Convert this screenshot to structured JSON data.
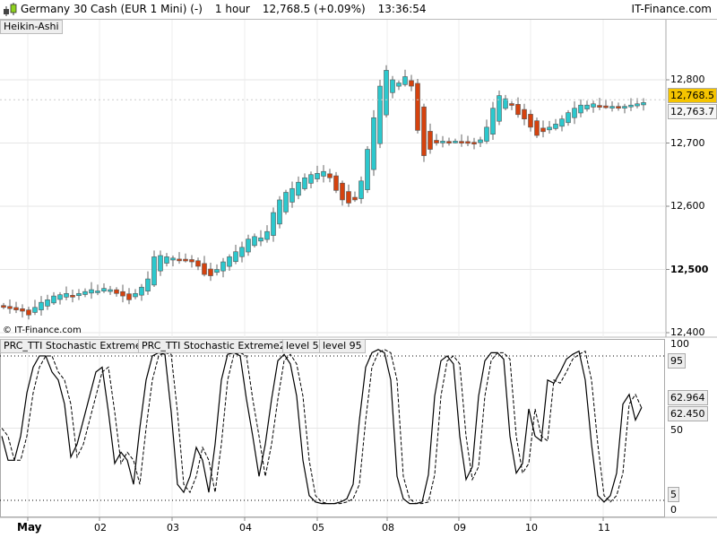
{
  "header": {
    "instrument": "Germany 30 Cash (EUR 1 Mini) (-)",
    "timeframe": "1 hour",
    "price": "12,768.5 (+0.09%)",
    "time": "13:36:54",
    "brand": "IT-Finance.com"
  },
  "main_panel": {
    "chart_style": "Heikin-Ashi",
    "copyright": "© IT-Finance.com",
    "price_ticks": [
      "12,800",
      "12,700",
      "12,600",
      "12,500",
      "12,400"
    ],
    "price_tick_values": [
      12800,
      12700,
      12600,
      12500,
      12400
    ],
    "last_price": "12,768.5",
    "second_price": "12,763.7",
    "colors": {
      "up": "#2cc8cd",
      "down": "#d5420e",
      "wick": "#666666",
      "last_price_bg": "#f5c400"
    },
    "closes": [
      12440,
      12438,
      12436,
      12434,
      12428,
      12440,
      12448,
      12452,
      12458,
      12460,
      12462,
      12458,
      12462,
      12465,
      12468,
      12466,
      12470,
      12468,
      12462,
      12458,
      12452,
      12462,
      12472,
      12485,
      12520,
      12522,
      12520,
      12518,
      12516,
      12515,
      12512,
      12505,
      12492,
      12490,
      12500,
      12512,
      12520,
      12528,
      12535,
      12548,
      12552,
      12550,
      12560,
      12590,
      12610,
      12622,
      12628,
      12638,
      12645,
      12650,
      12652,
      12655,
      12645,
      12625,
      12610,
      12605,
      12610,
      12640,
      12690,
      12740,
      12790,
      12815,
      12800,
      12795,
      12805,
      12790,
      12720,
      12680,
      12690,
      12700,
      12703,
      12702,
      12703,
      12702,
      12700,
      12700,
      12705,
      12725,
      12755,
      12775,
      12770,
      12760,
      12745,
      12738,
      12725,
      12712,
      12718,
      12725,
      12730,
      12738,
      12748,
      12755,
      12760,
      12760,
      12762,
      12758,
      12757,
      12758,
      12756,
      12758,
      12760,
      12762,
      12764
    ]
  },
  "indicator_panel": {
    "tabs": [
      "PRC_TTI Stochastic Extreme",
      "PRC_TTI Stochastic Extreme2",
      "level 5",
      "level 95"
    ],
    "ticks": [
      "100",
      "50",
      "0"
    ],
    "level_95": "95",
    "level_5": "5",
    "value_1": "62.964",
    "value_2": "62.450",
    "series_solid": [
      45,
      30,
      30,
      45,
      72,
      88,
      95,
      95,
      85,
      80,
      65,
      32,
      40,
      55,
      70,
      85,
      88,
      60,
      28,
      35,
      30,
      15,
      50,
      80,
      95,
      97,
      96,
      60,
      15,
      10,
      20,
      38,
      30,
      10,
      40,
      80,
      96,
      97,
      95,
      68,
      45,
      20,
      40,
      68,
      92,
      96,
      90,
      70,
      30,
      8,
      4,
      3,
      3,
      3,
      4,
      6,
      15,
      55,
      88,
      97,
      99,
      97,
      80,
      20,
      6,
      3,
      3,
      4,
      21,
      70,
      92,
      95,
      90,
      45,
      18,
      26,
      70,
      92,
      97,
      97,
      93,
      45,
      22,
      28,
      62,
      45,
      42,
      80,
      78,
      85,
      93,
      96,
      98,
      80,
      40,
      8,
      4,
      8,
      22,
      65,
      71,
      55,
      62.964
    ],
    "series_dashed": [
      50,
      45,
      30,
      30,
      45,
      72,
      88,
      95,
      95,
      85,
      80,
      65,
      32,
      40,
      55,
      70,
      85,
      88,
      60,
      28,
      35,
      30,
      15,
      50,
      80,
      95,
      97,
      96,
      60,
      15,
      10,
      20,
      38,
      30,
      10,
      40,
      80,
      96,
      97,
      95,
      68,
      45,
      20,
      40,
      68,
      92,
      96,
      90,
      70,
      30,
      8,
      4,
      3,
      3,
      3,
      4,
      6,
      15,
      55,
      88,
      97,
      99,
      97,
      80,
      20,
      6,
      3,
      3,
      4,
      21,
      70,
      92,
      95,
      90,
      45,
      18,
      26,
      70,
      92,
      97,
      97,
      93,
      45,
      22,
      28,
      62,
      45,
      42,
      80,
      78,
      85,
      93,
      96,
      98,
      80,
      40,
      8,
      4,
      8,
      22,
      65,
      71,
      62.45
    ]
  },
  "date_axis": [
    "May",
    "02",
    "03",
    "04",
    "05",
    "08",
    "09",
    "10",
    "11"
  ]
}
